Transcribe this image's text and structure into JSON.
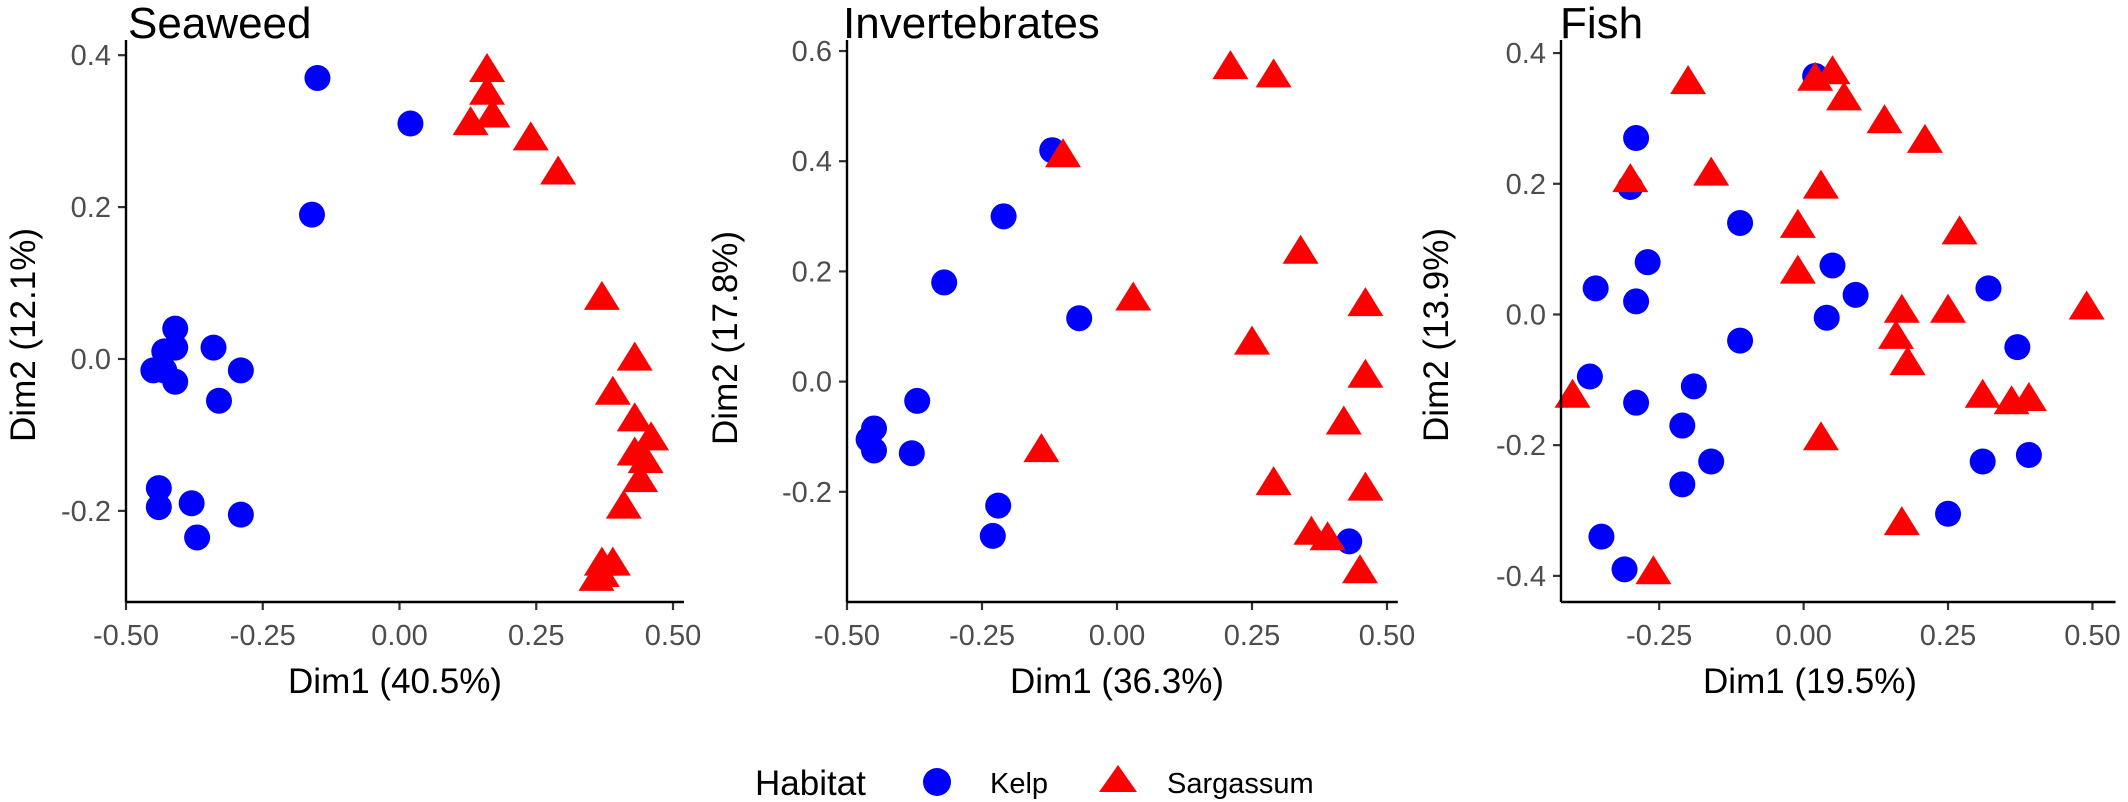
{
  "chart_data": [
    {
      "type": "scatter",
      "title": "Seaweed",
      "xlabel": "Dim1 (40.5%)",
      "ylabel": "Dim2 (12.1%)",
      "xlim": [
        -0.5,
        0.5
      ],
      "ylim": [
        -0.32,
        0.42
      ],
      "xticks": [
        -0.5,
        -0.25,
        0.0,
        0.25,
        0.5
      ],
      "xtick_labels": [
        "-0.50",
        "-0.25",
        "0.00",
        "0.25",
        "0.50"
      ],
      "yticks": [
        -0.2,
        0.0,
        0.2,
        0.4
      ],
      "ytick_labels": [
        "-0.2",
        "0.0",
        "0.2",
        "0.4"
      ],
      "series": [
        {
          "name": "Kelp",
          "points": [
            [
              -0.15,
              0.37
            ],
            [
              0.02,
              0.31
            ],
            [
              -0.16,
              0.19
            ],
            [
              -0.41,
              0.04
            ],
            [
              -0.43,
              0.01
            ],
            [
              -0.41,
              0.015
            ],
            [
              -0.34,
              0.015
            ],
            [
              -0.45,
              -0.015
            ],
            [
              -0.43,
              -0.015
            ],
            [
              -0.29,
              -0.015
            ],
            [
              -0.41,
              -0.03
            ],
            [
              -0.33,
              -0.055
            ],
            [
              -0.44,
              -0.17
            ],
            [
              -0.44,
              -0.195
            ],
            [
              -0.38,
              -0.19
            ],
            [
              -0.29,
              -0.205
            ],
            [
              -0.37,
              -0.235
            ]
          ]
        },
        {
          "name": "Sargassum",
          "points": [
            [
              0.16,
              0.38
            ],
            [
              0.16,
              0.35
            ],
            [
              0.17,
              0.32
            ],
            [
              0.13,
              0.31
            ],
            [
              0.24,
              0.29
            ],
            [
              0.29,
              0.245
            ],
            [
              0.37,
              0.08
            ],
            [
              0.43,
              0.0
            ],
            [
              0.39,
              -0.045
            ],
            [
              0.43,
              -0.08
            ],
            [
              0.46,
              -0.105
            ],
            [
              0.43,
              -0.125
            ],
            [
              0.45,
              -0.135
            ],
            [
              0.44,
              -0.16
            ],
            [
              0.41,
              -0.195
            ],
            [
              0.37,
              -0.27
            ],
            [
              0.39,
              -0.27
            ],
            [
              0.37,
              -0.285
            ],
            [
              0.36,
              -0.29
            ]
          ]
        }
      ]
    },
    {
      "type": "scatter",
      "title": "Invertebrates",
      "xlabel": "Dim1 (36.3%)",
      "ylabel": "Dim2 (17.8%)",
      "xlim": [
        -0.5,
        0.5
      ],
      "ylim": [
        -0.4,
        0.62
      ],
      "xticks": [
        -0.5,
        -0.25,
        0.0,
        0.25,
        0.5
      ],
      "xtick_labels": [
        "-0.50",
        "-0.25",
        "0.00",
        "0.25",
        "0.50"
      ],
      "yticks": [
        -0.2,
        0.0,
        0.2,
        0.4,
        0.6
      ],
      "ytick_labels": [
        "-0.2",
        "0.0",
        "0.2",
        "0.4",
        "0.6"
      ],
      "series": [
        {
          "name": "Kelp",
          "points": [
            [
              -0.12,
              0.42
            ],
            [
              -0.21,
              0.3
            ],
            [
              -0.32,
              0.18
            ],
            [
              -0.07,
              0.115
            ],
            [
              -0.37,
              -0.035
            ],
            [
              -0.45,
              -0.085
            ],
            [
              -0.46,
              -0.105
            ],
            [
              -0.45,
              -0.125
            ],
            [
              -0.38,
              -0.13
            ],
            [
              -0.22,
              -0.225
            ],
            [
              -0.23,
              -0.28
            ],
            [
              0.43,
              -0.29
            ]
          ]
        },
        {
          "name": "Sargassum",
          "points": [
            [
              0.21,
              0.57
            ],
            [
              0.29,
              0.555
            ],
            [
              -0.1,
              0.41
            ],
            [
              0.34,
              0.235
            ],
            [
              0.03,
              0.15
            ],
            [
              0.46,
              0.14
            ],
            [
              0.25,
              0.07
            ],
            [
              0.46,
              0.01
            ],
            [
              0.42,
              -0.075
            ],
            [
              -0.14,
              -0.125
            ],
            [
              0.29,
              -0.185
            ],
            [
              0.46,
              -0.195
            ],
            [
              0.36,
              -0.275
            ],
            [
              0.39,
              -0.285
            ],
            [
              0.45,
              -0.345
            ]
          ]
        }
      ]
    },
    {
      "type": "scatter",
      "title": "Fish",
      "xlabel": "Dim1 (19.5%)",
      "ylabel": "Dim2 (13.9%)",
      "xlim": [
        -0.42,
        0.52
      ],
      "ylim": [
        -0.44,
        0.42
      ],
      "xticks": [
        -0.25,
        0.0,
        0.25,
        0.5
      ],
      "xtick_labels": [
        "-0.25",
        "0.00",
        "0.25",
        "0.50"
      ],
      "yticks": [
        -0.4,
        -0.2,
        0.0,
        0.2,
        0.4
      ],
      "ytick_labels": [
        "-0.4",
        "-0.2",
        "0.0",
        "0.2",
        "0.4"
      ],
      "series": [
        {
          "name": "Kelp",
          "points": [
            [
              0.02,
              0.365
            ],
            [
              -0.29,
              0.27
            ],
            [
              -0.3,
              0.195
            ],
            [
              -0.11,
              0.14
            ],
            [
              -0.27,
              0.08
            ],
            [
              0.05,
              0.075
            ],
            [
              -0.36,
              0.04
            ],
            [
              0.32,
              0.04
            ],
            [
              0.09,
              0.03
            ],
            [
              -0.29,
              0.02
            ],
            [
              0.04,
              -0.005
            ],
            [
              -0.11,
              -0.04
            ],
            [
              0.37,
              -0.05
            ],
            [
              -0.37,
              -0.095
            ],
            [
              -0.19,
              -0.11
            ],
            [
              -0.29,
              -0.135
            ],
            [
              -0.21,
              -0.17
            ],
            [
              -0.16,
              -0.225
            ],
            [
              0.39,
              -0.215
            ],
            [
              0.31,
              -0.225
            ],
            [
              -0.21,
              -0.26
            ],
            [
              0.25,
              -0.305
            ],
            [
              -0.35,
              -0.34
            ],
            [
              -0.31,
              -0.39
            ]
          ]
        },
        {
          "name": "Sargassum",
          "points": [
            [
              0.05,
              0.37
            ],
            [
              0.02,
              0.36
            ],
            [
              -0.2,
              0.355
            ],
            [
              0.07,
              0.33
            ],
            [
              0.14,
              0.295
            ],
            [
              0.21,
              0.265
            ],
            [
              -0.16,
              0.215
            ],
            [
              -0.3,
              0.205
            ],
            [
              0.03,
              0.195
            ],
            [
              -0.01,
              0.135
            ],
            [
              0.27,
              0.125
            ],
            [
              -0.01,
              0.065
            ],
            [
              0.17,
              0.005
            ],
            [
              0.25,
              0.005
            ],
            [
              0.49,
              0.01
            ],
            [
              0.16,
              -0.035
            ],
            [
              0.18,
              -0.075
            ],
            [
              0.31,
              -0.125
            ],
            [
              0.39,
              -0.13
            ],
            [
              0.36,
              -0.135
            ],
            [
              -0.4,
              -0.125
            ],
            [
              0.03,
              -0.19
            ],
            [
              0.17,
              -0.32
            ],
            [
              -0.26,
              -0.395
            ]
          ]
        }
      ]
    }
  ],
  "legend": {
    "title": "Habitat",
    "items": [
      {
        "label": "Kelp",
        "shape": "circle",
        "color": "#0000ff"
      },
      {
        "label": "Sargassum",
        "shape": "triangle",
        "color": "#ff0000"
      }
    ]
  },
  "colors": {
    "Kelp": "#0000ff",
    "Sargassum": "#ff0000"
  }
}
